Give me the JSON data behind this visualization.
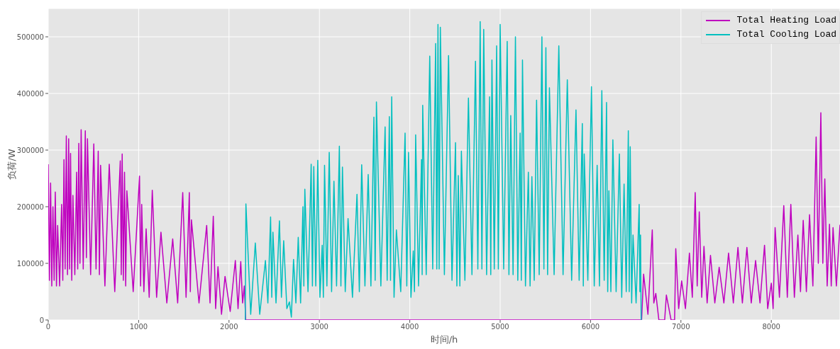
{
  "chart_data": {
    "type": "line",
    "xlabel": "时间/h",
    "ylabel": "负荷/W",
    "xlim": [
      0,
      8760
    ],
    "xticks": [
      0,
      1000,
      2000,
      3000,
      4000,
      5000,
      6000,
      7000,
      8000
    ],
    "ylim": [
      0,
      550000
    ],
    "yticks": [
      0,
      100000,
      200000,
      300000,
      400000,
      500000
    ],
    "grid": true,
    "legend": "top right",
    "marker": "none",
    "line_style": "solid",
    "series": [
      {
        "name": "Total Heating Load",
        "color": "#bf00bf",
        "x": [
          0,
          13,
          26,
          39,
          52,
          65,
          78,
          91,
          104,
          126,
          148,
          161,
          174,
          187,
          200,
          213,
          226,
          236,
          247,
          260,
          273,
          294,
          314,
          326,
          338,
          351,
          364,
          387,
          410,
          422,
          434,
          469,
          504,
          529,
          553,
          566,
          579,
          627,
          675,
          736,
          797,
          808,
          818,
          831,
          844,
          857,
          870,
          940,
          1010,
          1022,
          1034,
          1058,
          1083,
          1117,
          1151,
          1199,
          1247,
          1312,
          1377,
          1432,
          1488,
          1525,
          1561,
          1572,
          1584,
          1668,
          1753,
          1790,
          1826,
          1852,
          1878,
          1917,
          1956,
          2013,
          2070,
          2100,
          2130,
          2150,
          2169,
          2185,
          6565,
          6587,
          6635,
          6683,
          6700,
          6722,
          6756,
          6820,
          6839,
          6891,
          6930,
          6943,
          6975,
          7008,
          7050,
          7094,
          7126,
          7158,
          7180,
          7203,
          7230,
          7255,
          7290,
          7327,
          7375,
          7423,
          7475,
          7527,
          7580,
          7631,
          7680,
          7730,
          7778,
          7826,
          7875,
          7925,
          7960,
          8000,
          8020,
          8042,
          8090,
          8138,
          8177,
          8216,
          8255,
          8294,
          8323,
          8353,
          8388,
          8423,
          8460,
          8496,
          8520,
          8548,
          8570,
          8592,
          8618,
          8644,
          8663,
          8683,
          8720,
          8760
        ],
        "values": [
          275000,
          70000,
          242000,
          60000,
          200000,
          70000,
          226000,
          60000,
          167000,
          60000,
          204000,
          70000,
          283000,
          90000,
          325000,
          80000,
          320000,
          90000,
          294000,
          70000,
          220000,
          80000,
          261000,
          90000,
          312000,
          100000,
          336000,
          90000,
          334000,
          110000,
          320000,
          80000,
          311000,
          90000,
          298000,
          80000,
          273000,
          60000,
          275000,
          50000,
          281000,
          80000,
          293000,
          70000,
          261000,
          60000,
          228000,
          50000,
          254000,
          60000,
          204000,
          50000,
          161000,
          40000,
          229000,
          40000,
          155000,
          30000,
          143000,
          30000,
          225000,
          40000,
          225000,
          50000,
          177000,
          30000,
          167000,
          30000,
          183000,
          20000,
          94000,
          10000,
          77000,
          15000,
          105000,
          20000,
          103000,
          30000,
          60000,
          0,
          0,
          81000,
          10000,
          159000,
          30000,
          47000,
          0,
          0,
          44000,
          0,
          0,
          126000,
          20000,
          69000,
          20000,
          118000,
          40000,
          225000,
          60000,
          191000,
          40000,
          130000,
          30000,
          114000,
          30000,
          93000,
          30000,
          118000,
          30000,
          128000,
          30000,
          128000,
          30000,
          105000,
          30000,
          132000,
          20000,
          65000,
          20000,
          163000,
          40000,
          202000,
          40000,
          204000,
          40000,
          150000,
          50000,
          176000,
          50000,
          186000,
          60000,
          323000,
          100000,
          366000,
          100000,
          249000,
          60000,
          169000,
          60000,
          163000,
          60000,
          168000
        ]
      },
      {
        "name": "Total Cooling Load",
        "color": "#00bfbf",
        "x": [
          2180,
          2187,
          2240,
          2291,
          2340,
          2403,
          2430,
          2460,
          2473,
          2486,
          2520,
          2558,
          2580,
          2605,
          2640,
          2668,
          2690,
          2714,
          2740,
          2766,
          2792,
          2818,
          2828,
          2839,
          2874,
          2909,
          2923,
          2938,
          2960,
          2982,
          3006,
          3031,
          3044,
          3057,
          3083,
          3109,
          3135,
          3161,
          3190,
          3221,
          3238,
          3255,
          3286,
          3317,
          3366,
          3416,
          3442,
          3468,
          3504,
          3540,
          3570,
          3603,
          3617,
          3631,
          3680,
          3727,
          3750,
          3774,
          3787,
          3800,
          3826,
          3852,
          3900,
          3948,
          3967,
          3987,
          4013,
          4039,
          4052,
          4065,
          4097,
          4130,
          4137,
          4143,
          4182,
          4221,
          4254,
          4286,
          4299,
          4312,
          4325,
          4338,
          4383,
          4429,
          4467,
          4506,
          4521,
          4537,
          4554,
          4571,
          4610,
          4649,
          4688,
          4727,
          4753,
          4779,
          4798,
          4818,
          4850,
          4883,
          4896,
          4909,
          4935,
          4961,
          4980,
          5000,
          5039,
          5078,
          5097,
          5117,
          5143,
          5169,
          5195,
          5221,
          5234,
          5247,
          5280,
          5312,
          5331,
          5351,
          5377,
          5403,
          5432,
          5462,
          5484,
          5506,
          5525,
          5545,
          5597,
          5649,
          5696,
          5743,
          5791,
          5839,
          5874,
          5909,
          5920,
          5930,
          5970,
          6010,
          6041,
          6073,
          6099,
          6125,
          6151,
          6177,
          6190,
          6203,
          6225,
          6247,
          6283,
          6319,
          6345,
          6371,
          6395,
          6418,
          6428,
          6439,
          6455,
          6470,
          6504,
          6538,
          6546,
          6553,
          6560
        ],
        "values": [
          0,
          205000,
          10000,
          136000,
          10000,
          105000,
          30000,
          182000,
          40000,
          155000,
          30000,
          175000,
          40000,
          140000,
          20000,
          32000,
          5000,
          107000,
          30000,
          146000,
          30000,
          200000,
          60000,
          231000,
          50000,
          275000,
          60000,
          271000,
          60000,
          282000,
          40000,
          132000,
          40000,
          273000,
          60000,
          296000,
          50000,
          245000,
          60000,
          307000,
          60000,
          270000,
          50000,
          179000,
          40000,
          222000,
          50000,
          274000,
          60000,
          257000,
          60000,
          358000,
          70000,
          385000,
          60000,
          341000,
          70000,
          359000,
          70000,
          394000,
          40000,
          159000,
          50000,
          330000,
          60000,
          296000,
          40000,
          122000,
          50000,
          327000,
          60000,
          283000,
          80000,
          379000,
          80000,
          466000,
          90000,
          488000,
          90000,
          522000,
          90000,
          517000,
          80000,
          467000,
          70000,
          313000,
          60000,
          255000,
          60000,
          298000,
          70000,
          392000,
          80000,
          457000,
          90000,
          527000,
          90000,
          513000,
          80000,
          394000,
          80000,
          459000,
          90000,
          484000,
          90000,
          522000,
          90000,
          492000,
          80000,
          361000,
          80000,
          500000,
          70000,
          330000,
          70000,
          459000,
          60000,
          261000,
          60000,
          253000,
          70000,
          388000,
          80000,
          500000,
          90000,
          481000,
          80000,
          410000,
          80000,
          484000,
          80000,
          424000,
          70000,
          371000,
          70000,
          347000,
          60000,
          293000,
          70000,
          412000,
          60000,
          273000,
          60000,
          405000,
          70000,
          384000,
          50000,
          228000,
          50000,
          318000,
          50000,
          293000,
          40000,
          240000,
          50000,
          334000,
          50000,
          306000,
          30000,
          150000,
          30000,
          204000,
          50000,
          150000,
          0
        ]
      }
    ]
  }
}
